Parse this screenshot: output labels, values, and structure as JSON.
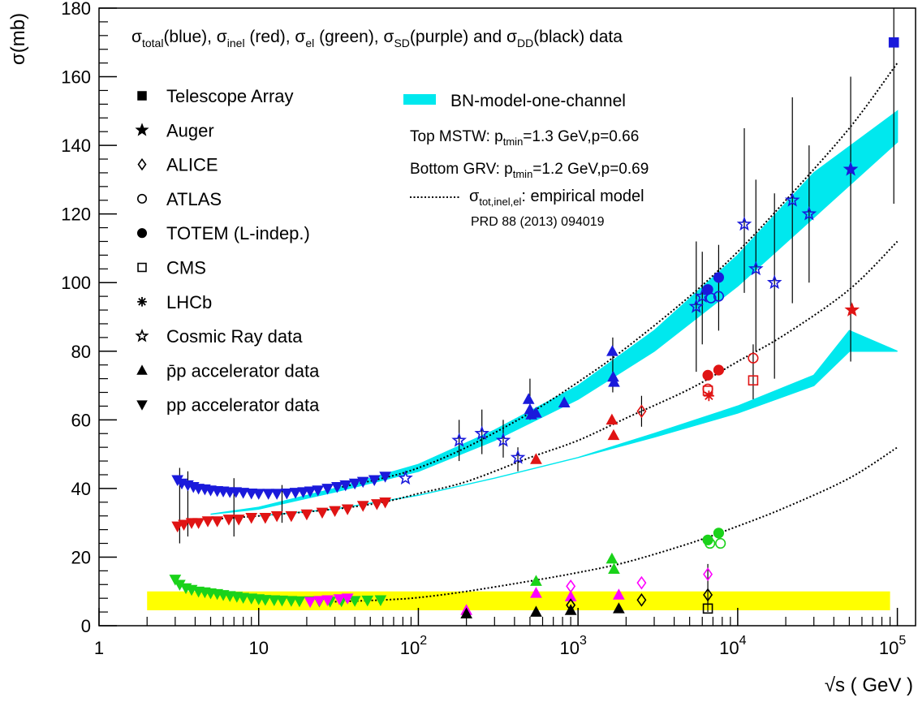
{
  "chart_data": {
    "type": "scatter",
    "xlabel": "√s ( GeV )",
    "ylabel": "σ(mb)",
    "x_scale": "log",
    "xlim": [
      1,
      130000
    ],
    "ylim": [
      0,
      180
    ],
    "x_ticks": [
      {
        "value": 1,
        "label": "1"
      },
      {
        "value": 10,
        "label": "10"
      },
      {
        "value": 100,
        "label": "10",
        "exp": "2"
      },
      {
        "value": 1000,
        "label": "10",
        "exp": "3"
      },
      {
        "value": 10000,
        "label": "10",
        "exp": "4"
      },
      {
        "value": 100000,
        "label": "10",
        "exp": "5"
      }
    ],
    "y_ticks": [
      0,
      20,
      40,
      60,
      80,
      100,
      120,
      140,
      160,
      180
    ],
    "header": {
      "sigma": "σ",
      "total": "total",
      "blue_label": "(blue), ",
      "inel": "inel",
      "red_label": " (red), ",
      "el": "el",
      "green_label": " (green), ",
      "sd": "SD",
      "purple_label": "(purple) and ",
      "dd": "DD",
      "black_label": "(black) data"
    },
    "legend": [
      {
        "marker": "square",
        "label": "Telescope Array"
      },
      {
        "marker": "star",
        "label": "Auger"
      },
      {
        "marker": "diamond-open",
        "label": "ALICE"
      },
      {
        "marker": "circle-open",
        "label": "ATLAS"
      },
      {
        "marker": "circle",
        "label": "TOTEM (L-indep.)"
      },
      {
        "marker": "square-open",
        "label": "CMS"
      },
      {
        "marker": "asterisk",
        "label": "LHCb"
      },
      {
        "marker": "star-open",
        "label": "Cosmic Ray data"
      },
      {
        "marker": "triangle-up",
        "label": "p̄p accelerator data"
      },
      {
        "marker": "triangle-down",
        "label": "pp accelerator data"
      }
    ],
    "model_box": {
      "band_label": "BN-model-one-channel",
      "top_prefix": "Top MSTW: p",
      "top_sub": "tmin",
      "top_suffix": "=1.3 GeV,p=0.66",
      "bottom_prefix": "Bottom GRV: p",
      "bottom_sub": "tmin",
      "bottom_suffix": "=1.2 GeV,p=0.69",
      "emp_sigma": "σ",
      "emp_sub": "tot,inel,el",
      "emp_suffix": ": empirical model",
      "reference": "PRD 88 (2013) 094019"
    },
    "colors": {
      "total": "#1a1adb",
      "inel": "#e01414",
      "el": "#1ad21a",
      "sd": "#ff00ff",
      "dd": "#000000",
      "band": "#00e8ee",
      "yellow_band": "#ffff00"
    },
    "empirical_curves": [
      {
        "name": "total",
        "x": [
          30,
          60,
          100,
          200,
          500,
          1000,
          2000,
          5000,
          10000,
          20000,
          50000,
          100000
        ],
        "y": [
          40,
          43,
          46,
          52,
          62,
          71,
          81,
          96,
          109,
          124,
          145,
          164
        ]
      },
      {
        "name": "inel",
        "x": [
          5,
          10,
          30,
          60,
          100,
          200,
          500,
          1000,
          2000,
          5000,
          10000,
          20000,
          50000,
          100000
        ],
        "y": [
          31,
          32,
          34,
          36,
          38.5,
          42,
          49,
          54,
          60.5,
          69,
          77,
          85,
          98,
          112
        ]
      },
      {
        "name": "el",
        "x": [
          30,
          60,
          100,
          200,
          500,
          1000,
          2000,
          5000,
          10000,
          20000,
          50000,
          100000
        ],
        "y": [
          7,
          7.5,
          8.2,
          10,
          13,
          15.5,
          18.5,
          24,
          29,
          34.5,
          43,
          52
        ]
      }
    ],
    "bn_bands": [
      {
        "name": "total",
        "x": [
          5,
          10,
          30,
          100,
          300,
          1000,
          3000,
          10000,
          30000,
          100000
        ],
        "y_top": [
          32.5,
          34.5,
          40,
          47,
          57,
          70,
          86,
          108,
          132,
          150
        ],
        "y_bot": [
          32.5,
          34,
          39,
          45,
          54,
          66,
          80,
          99,
          119,
          141
        ]
      },
      {
        "name": "inel",
        "x": [
          10,
          30,
          100,
          300,
          1000,
          3000,
          10000,
          30000,
          50000,
          100000
        ],
        "y_top": [
          32,
          34,
          38,
          43,
          49,
          56,
          64,
          73,
          86,
          80
        ],
        "y_bot": [
          32,
          34,
          38,
          43,
          49,
          55,
          62,
          70,
          80,
          80
        ]
      }
    ],
    "yellow_band": {
      "x": [
        2,
        90000
      ],
      "y": [
        4.5,
        10
      ]
    },
    "series": [
      {
        "name": "total-pp",
        "marker": "triangle-down",
        "color": "total",
        "x": [
          3.1,
          3.3,
          3.6,
          3.9,
          4.2,
          4.6,
          5,
          5.5,
          6,
          6.6,
          7.2,
          8,
          9,
          10,
          11.5,
          13,
          15,
          17,
          19,
          21,
          23.5,
          27,
          31,
          35,
          40,
          45,
          53,
          62
        ],
        "y": [
          42.5,
          41.5,
          41,
          40.5,
          40,
          39.8,
          39.5,
          39.3,
          39.2,
          39,
          39,
          38.8,
          38.6,
          38.5,
          38.5,
          38.5,
          38.6,
          38.8,
          39,
          39.2,
          39.5,
          40,
          40.5,
          41,
          41.5,
          42,
          42.5,
          43.5
        ]
      },
      {
        "name": "total-ppbar",
        "marker": "triangle-up",
        "color": "total",
        "x": [
          490,
          500,
          510,
          546,
          820,
          1640,
          1660,
          1680
        ],
        "y": [
          66,
          63,
          61.5,
          62,
          65,
          80,
          72.5,
          71
        ]
      },
      {
        "name": "total-cosmic",
        "marker": "star-open",
        "color": "total",
        "x": [
          83,
          180,
          250,
          340,
          420,
          5500,
          6000,
          11000,
          13000,
          17000,
          22000,
          28000
        ],
        "y": [
          43,
          54,
          56,
          54,
          49,
          93,
          96,
          117,
          104,
          100,
          124,
          120
        ]
      },
      {
        "name": "total-totem",
        "marker": "circle",
        "color": "total",
        "x": [
          6500,
          7600
        ],
        "y": [
          98,
          101.5
        ]
      },
      {
        "name": "total-atlas",
        "marker": "circle-open",
        "color": "total",
        "x": [
          6800,
          7600
        ],
        "y": [
          95.5,
          96
        ]
      },
      {
        "name": "total-auger",
        "marker": "star",
        "color": "total",
        "x": [
          51000
        ],
        "y": [
          133
        ]
      },
      {
        "name": "total-ta",
        "marker": "square",
        "color": "total",
        "x": [
          95000
        ],
        "y": [
          170
        ]
      },
      {
        "name": "inel-pp",
        "marker": "triangle-down",
        "color": "inel",
        "x": [
          3.1,
          3.4,
          3.8,
          4.2,
          4.8,
          5.5,
          6.5,
          7.5,
          9,
          11,
          13,
          16,
          20,
          25,
          30,
          36,
          45,
          55,
          62
        ],
        "y": [
          29,
          29.5,
          30,
          30,
          30.5,
          30.5,
          31,
          31,
          31.5,
          31.5,
          32,
          32,
          32.5,
          33,
          33.5,
          34,
          35,
          35.5,
          36
        ]
      },
      {
        "name": "inel-ppbar",
        "marker": "triangle-up",
        "color": "inel",
        "x": [
          546,
          1630,
          1670
        ],
        "y": [
          48.5,
          60,
          55.5
        ]
      },
      {
        "name": "inel-alice",
        "marker": "diamond-open",
        "color": "inel",
        "x": [
          2500
        ],
        "y": [
          62.5
        ]
      },
      {
        "name": "inel-totem",
        "marker": "circle",
        "color": "inel",
        "x": [
          6500,
          7600
        ],
        "y": [
          73,
          74.5
        ]
      },
      {
        "name": "inel-atlas",
        "marker": "circle-open",
        "color": "inel",
        "x": [
          6500,
          12500
        ],
        "y": [
          69,
          78
        ]
      },
      {
        "name": "inel-cms",
        "marker": "square-open",
        "color": "inel",
        "x": [
          6500,
          12500
        ],
        "y": [
          68.5,
          71.5
        ]
      },
      {
        "name": "inel-lhcb",
        "marker": "asterisk",
        "color": "inel",
        "x": [
          6600
        ],
        "y": [
          67
        ]
      },
      {
        "name": "inel-auger",
        "marker": "star",
        "color": "inel",
        "x": [
          52000
        ],
        "y": [
          92
        ]
      },
      {
        "name": "el-pp",
        "marker": "triangle-down",
        "color": "el",
        "x": [
          3,
          3.2,
          3.5,
          3.8,
          4.2,
          4.6,
          5,
          5.5,
          6,
          6.6,
          7.3,
          8,
          9,
          10,
          11,
          12.5,
          14,
          16,
          18,
          21,
          24,
          28,
          33,
          40,
          48,
          58
        ],
        "y": [
          13.5,
          12,
          11,
          10.5,
          10,
          9.8,
          9.5,
          9.3,
          9,
          8.7,
          8.5,
          8.2,
          8,
          7.8,
          7.6,
          7.5,
          7.4,
          7.3,
          7.2,
          7.2,
          7.1,
          7.1,
          7.2,
          7.3,
          7.4,
          7.5
        ]
      },
      {
        "name": "el-ppbar",
        "marker": "triangle-up",
        "color": "el",
        "x": [
          546,
          1630,
          1680
        ],
        "y": [
          13,
          19.5,
          16.5
        ]
      },
      {
        "name": "el-totem",
        "marker": "circle",
        "color": "el",
        "x": [
          6500,
          7600
        ],
        "y": [
          25,
          27
        ]
      },
      {
        "name": "el-atlas",
        "marker": "circle-open",
        "color": "el",
        "x": [
          6700,
          7800
        ],
        "y": [
          24,
          24
        ]
      },
      {
        "name": "sd-pp",
        "marker": "triangle-down",
        "color": "sd",
        "x": [
          21,
          24,
          27,
          32,
          36
        ],
        "y": [
          7,
          7.3,
          7.5,
          7.8,
          8
        ]
      },
      {
        "name": "sd-ppbar",
        "marker": "triangle-up",
        "color": "sd",
        "x": [
          200,
          546,
          900,
          1800
        ],
        "y": [
          4.5,
          9.5,
          8.5,
          9
        ]
      },
      {
        "name": "sd-alice",
        "marker": "diamond-open",
        "color": "sd",
        "x": [
          900,
          2500,
          6500
        ],
        "y": [
          11.5,
          12.5,
          15
        ]
      },
      {
        "name": "dd-ppbar",
        "marker": "triangle-up",
        "color": "dd",
        "x": [
          200,
          546,
          900,
          1800
        ],
        "y": [
          3.5,
          4,
          4.5,
          5
        ]
      },
      {
        "name": "dd-alice",
        "marker": "diamond-open",
        "color": "dd",
        "x": [
          900,
          2500,
          6500
        ],
        "y": [
          6,
          7.5,
          9
        ]
      },
      {
        "name": "dd-cms",
        "marker": "square-open",
        "color": "dd",
        "x": [
          6500
        ],
        "y": [
          5
        ]
      }
    ],
    "error_bars": [
      {
        "x": 3.2,
        "lo": 24,
        "hi": 46
      },
      {
        "x": 3.6,
        "lo": 26,
        "hi": 45
      },
      {
        "x": 7,
        "lo": 26,
        "hi": 43
      },
      {
        "x": 14,
        "lo": 30,
        "hi": 41
      },
      {
        "x": 180,
        "lo": 48,
        "hi": 60
      },
      {
        "x": 250,
        "lo": 50,
        "hi": 63
      },
      {
        "x": 340,
        "lo": 49,
        "hi": 60
      },
      {
        "x": 420,
        "lo": 45,
        "hi": 52
      },
      {
        "x": 500,
        "lo": 60,
        "hi": 72
      },
      {
        "x": 1650,
        "lo": 68,
        "hi": 84
      },
      {
        "x": 2500,
        "lo": 58,
        "hi": 67
      },
      {
        "x": 5500,
        "lo": 74,
        "hi": 112
      },
      {
        "x": 6000,
        "lo": 82,
        "hi": 109
      },
      {
        "x": 7600,
        "lo": 86,
        "hi": 111
      },
      {
        "x": 11000,
        "lo": 97,
        "hi": 145
      },
      {
        "x": 13000,
        "lo": 80,
        "hi": 130
      },
      {
        "x": 17000,
        "lo": 72,
        "hi": 126
      },
      {
        "x": 22000,
        "lo": 94,
        "hi": 154
      },
      {
        "x": 28000,
        "lo": 100,
        "hi": 140
      },
      {
        "x": 51000,
        "lo": 77,
        "hi": 160
      },
      {
        "x": 95000,
        "lo": 123,
        "hi": 180
      },
      {
        "x": 6500,
        "lo": 4,
        "hi": 18
      },
      {
        "x": 12500,
        "lo": 66,
        "hi": 82
      }
    ]
  }
}
